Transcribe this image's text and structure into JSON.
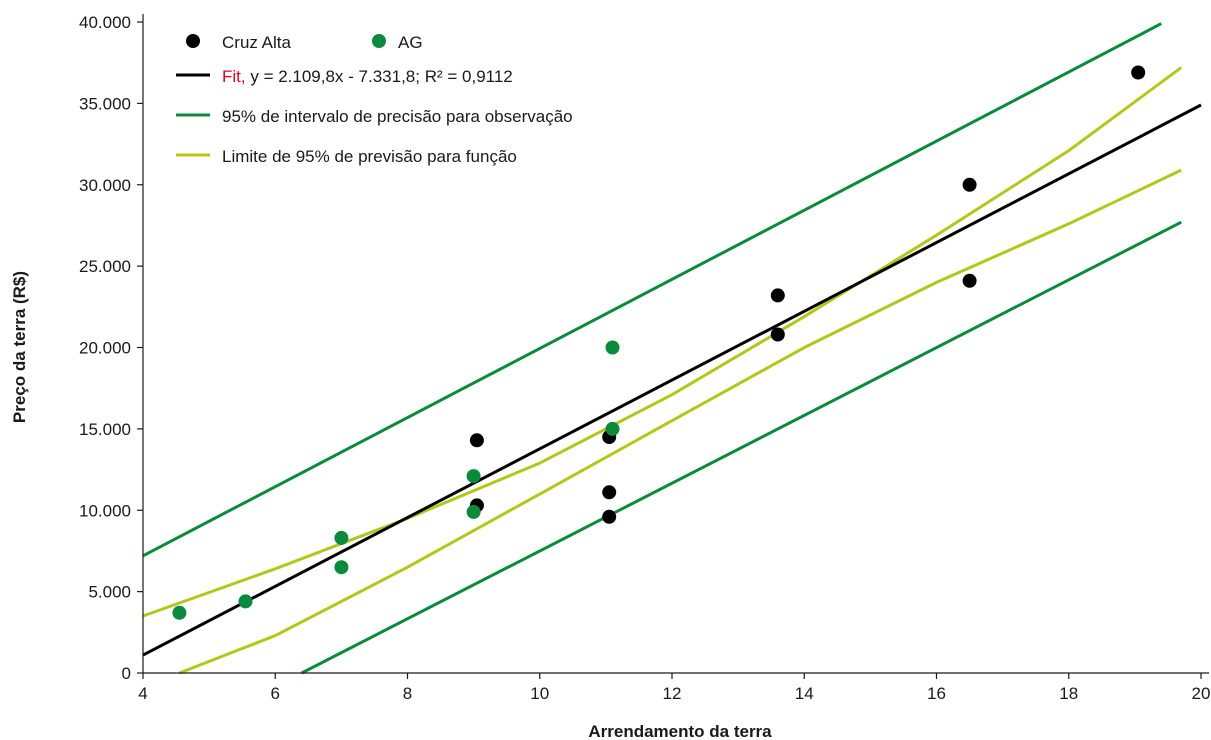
{
  "chart_data": {
    "type": "scatter",
    "xlabel": "Arrendamento da terra",
    "ylabel": "Preço da terra (R$)",
    "xlim": [
      4,
      20
    ],
    "ylim": [
      0,
      40000
    ],
    "x_ticks": [
      4,
      6,
      8,
      10,
      12,
      14,
      16,
      18,
      20
    ],
    "x_tick_labels": [
      "4",
      "6",
      "8",
      "10",
      "12",
      "14",
      "16",
      "18",
      "20"
    ],
    "y_ticks": [
      0,
      5000,
      10000,
      15000,
      20000,
      25000,
      30000,
      35000,
      40000
    ],
    "y_tick_labels": [
      "0",
      "5.000",
      "10.000",
      "15.000",
      "20.000",
      "25.000",
      "30.000",
      "35.000",
      "40.000"
    ],
    "grid": false,
    "legend_position": "top-left",
    "series": [
      {
        "name": "Cruz Alta",
        "kind": "points",
        "color": "#000000",
        "x": [
          9.05,
          9.05,
          11.05,
          11.05,
          11.05,
          13.6,
          13.6,
          16.5,
          16.5,
          19.05
        ],
        "y": [
          14300,
          10300,
          14500,
          11100,
          9600,
          23200,
          20800,
          30000,
          24100,
          36900
        ]
      },
      {
        "name": "AG",
        "kind": "points",
        "color": "#0a8a3a",
        "x": [
          4.55,
          5.55,
          7.0,
          7.0,
          9.0,
          9.0,
          11.1,
          11.1
        ],
        "y": [
          3700,
          4400,
          8300,
          6500,
          12100,
          9900,
          20000,
          15000
        ]
      },
      {
        "name": "Fit,",
        "name_color": "#e8001c",
        "equation": "y = 2.109,8x - 7.331,8; R² = 0,9112",
        "kind": "line",
        "color": "#000000",
        "x": [
          4.0,
          20.0
        ],
        "y": [
          1100,
          34900
        ]
      },
      {
        "name": "95% de intervalo de precisão para observação",
        "kind": "band",
        "color": "#0a8a3a",
        "upper": {
          "x": [
            4.0,
            19.4
          ],
          "y": [
            7200,
            39900
          ]
        },
        "lower": {
          "x": [
            6.4,
            19.7
          ],
          "y": [
            0,
            27700
          ]
        }
      },
      {
        "name": "Limite de 95% de previsão para função",
        "kind": "band",
        "color": "#b5c61a",
        "upper": {
          "x": [
            4.0,
            6.0,
            8.0,
            10.0,
            12.0,
            14.0,
            16.0,
            18.0,
            19.7
          ],
          "y": [
            3500,
            6400,
            9500,
            12900,
            17100,
            21900,
            26900,
            32100,
            37200
          ]
        },
        "lower": {
          "x": [
            4.55,
            6.0,
            8.0,
            10.0,
            12.0,
            14.0,
            16.0,
            18.0,
            19.7
          ],
          "y": [
            0,
            2300,
            6500,
            11000,
            15500,
            20000,
            24000,
            27600,
            30900
          ]
        }
      }
    ]
  }
}
